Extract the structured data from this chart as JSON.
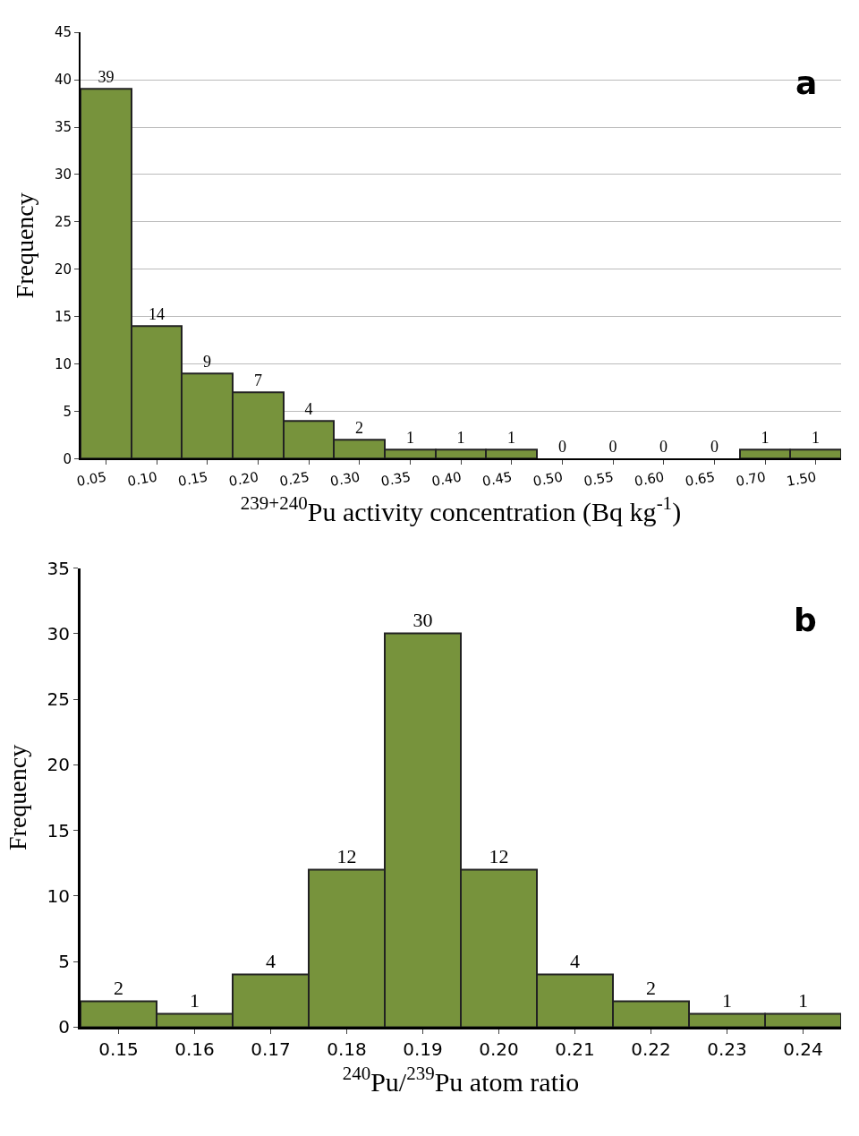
{
  "chart_data": [
    {
      "type": "bar",
      "categories": [
        "0.05",
        "0.10",
        "0.15",
        "0.20",
        "0.25",
        "0.30",
        "0.35",
        "0.40",
        "0.45",
        "0.50",
        "0.55",
        "0.60",
        "0.65",
        "0.70",
        "1.50"
      ],
      "values": [
        39,
        14,
        9,
        7,
        4,
        2,
        1,
        1,
        1,
        0,
        0,
        0,
        0,
        1,
        1
      ],
      "color": "#77933c",
      "ylim": [
        0,
        45
      ],
      "yticks": [
        0,
        5,
        10,
        15,
        20,
        25,
        30,
        35,
        40,
        45
      ],
      "grid": "y",
      "data_labels": true,
      "xlabel": "$^{239+240}$Pu activity concentration (Bq kg$^{-1}$)",
      "ylabel": "Frequency",
      "annotations": [
        "a"
      ]
    },
    {
      "type": "bar",
      "categories": [
        "0.15",
        "0.16",
        "0.17",
        "0.18",
        "0.19",
        "0.20",
        "0.21",
        "0.22",
        "0.23",
        "0.24"
      ],
      "values": [
        2,
        1,
        4,
        12,
        30,
        12,
        4,
        2,
        1,
        1
      ],
      "color": "#77933c",
      "ylim": [
        0,
        35
      ],
      "yticks": [
        0,
        5,
        10,
        15,
        20,
        25,
        30,
        35
      ],
      "data_labels": true,
      "xlabel": "$^{240}$Pu/$^{239}$Pu atom ratio",
      "ylabel": "Frequency",
      "annotations": [
        "b"
      ]
    }
  ]
}
